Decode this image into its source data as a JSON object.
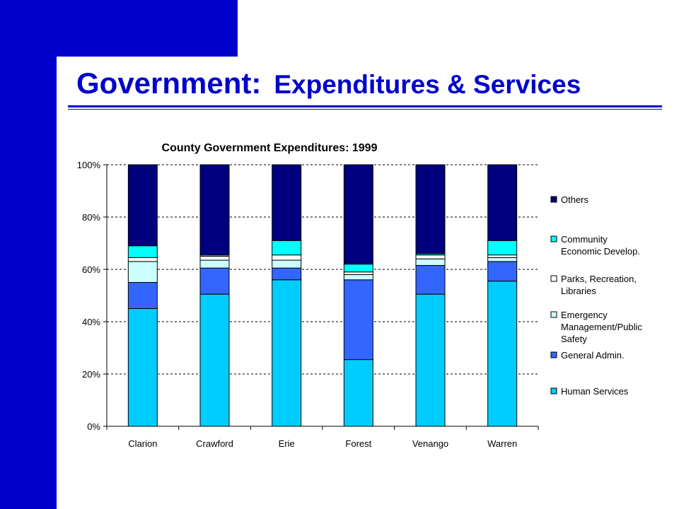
{
  "slide": {
    "title_main": "Government:",
    "title_sub": "Expenditures & Services"
  },
  "colors": {
    "frame": "#0000cc",
    "Others": "#00007f",
    "Community Economic Develop.": "#00ffff",
    "Parks, Recreation, Libraries": "#ffffff",
    "Emergency Management/Public Safety": "#ccffff",
    "General Admin.": "#3366ff",
    "Human Services": "#00ccff"
  },
  "chart_data": {
    "type": "bar",
    "stacked": "100%",
    "title": "County Government Expenditures: 1999",
    "categories": [
      "Clarion",
      "Crawford",
      "Erie",
      "Forest",
      "Venango",
      "Warren"
    ],
    "y_ticks": [
      "0%",
      "20%",
      "40%",
      "60%",
      "80%",
      "100%"
    ],
    "ylim": [
      0,
      100
    ],
    "grid": "dashed horizontal",
    "legend_position": "right",
    "series": [
      {
        "name": "Human Services",
        "values": [
          45,
          50.5,
          56,
          25.5,
          50.5,
          55.5
        ]
      },
      {
        "name": "General Admin.",
        "values": [
          10,
          10,
          4.5,
          30.5,
          11,
          7.5
        ]
      },
      {
        "name": "Emergency Management/Public Safety",
        "values": [
          8,
          3,
          3,
          2,
          2.5,
          1.5
        ]
      },
      {
        "name": "Parks, Recreation, Libraries",
        "values": [
          1.5,
          1.5,
          2,
          1,
          1.5,
          1
        ]
      },
      {
        "name": "Community Economic Develop.",
        "values": [
          4.5,
          0.5,
          5.5,
          3,
          0.5,
          5.5
        ]
      },
      {
        "name": "Others",
        "values": [
          31,
          34.5,
          29,
          38,
          34,
          29
        ]
      }
    ]
  }
}
